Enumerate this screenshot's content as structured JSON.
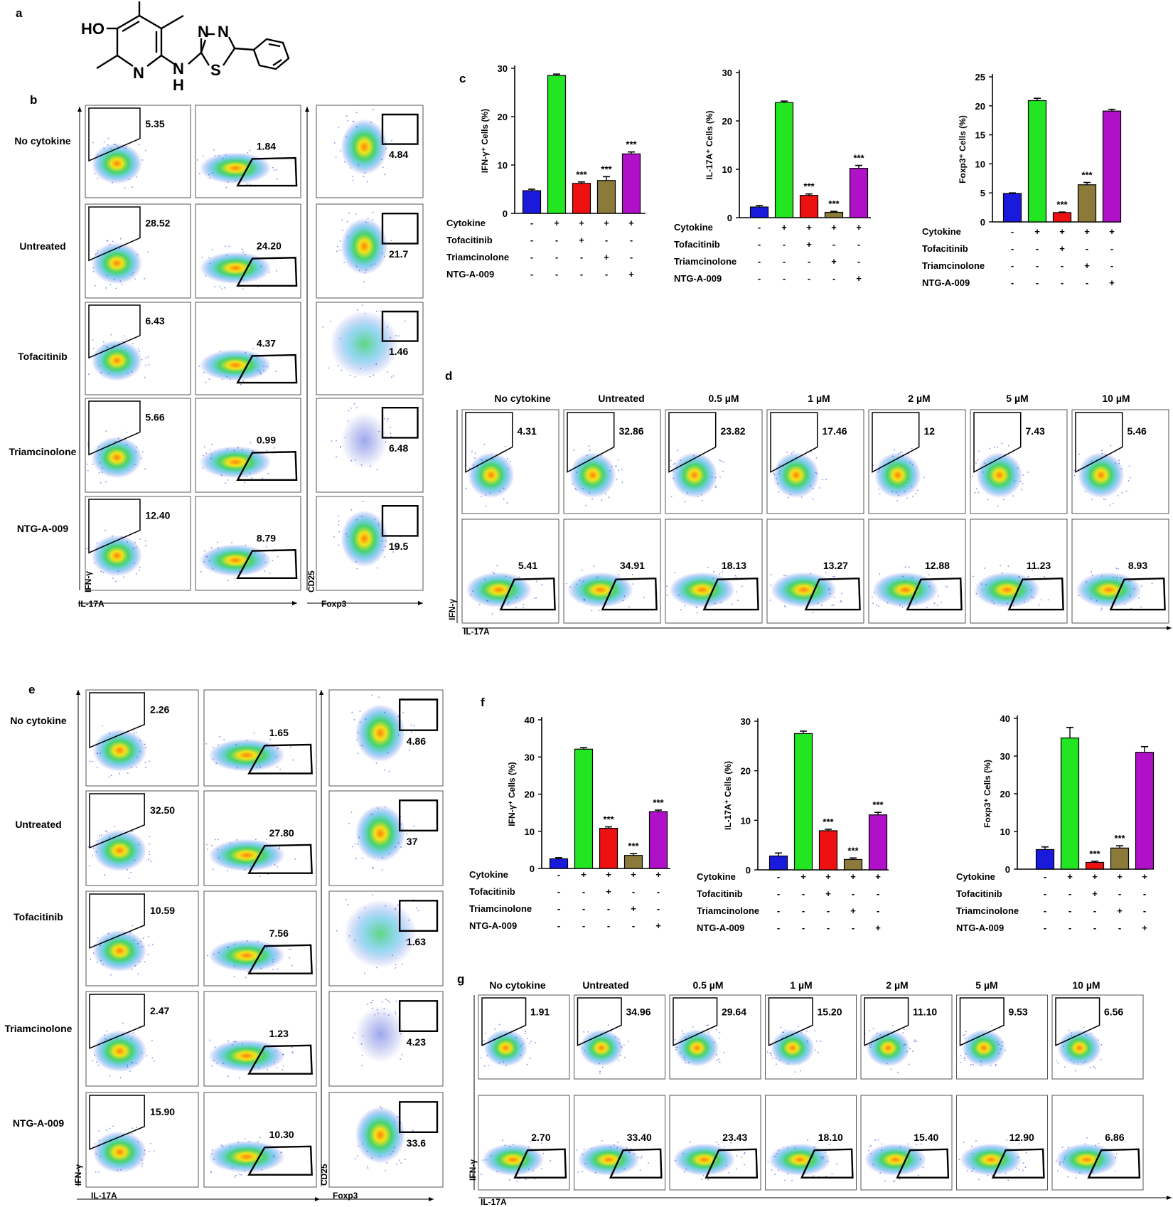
{
  "panel_letters": {
    "a": "a",
    "b": "b",
    "c": "c",
    "d": "d",
    "e": "e",
    "f": "f",
    "g": "g"
  },
  "structure": {
    "ho": "HO",
    "n1": "N",
    "n2": "N",
    "n3": "N",
    "nh_n": "N",
    "nh_h": "H",
    "s": "S"
  },
  "conditions": [
    "No cytokine",
    "Untreated",
    "Tofacitinib",
    "Triamcinolone",
    "NTG-A-009"
  ],
  "doses": [
    "No cytokine",
    "Untreated",
    "0.5 µM",
    "1 µM",
    "2 µM",
    "5 µM",
    "10 µM"
  ],
  "axis_labels": {
    "ifng": "IFN-γ",
    "il17a": "IL-17A",
    "cd25": "CD25",
    "foxp3": "Foxp3"
  },
  "panel_b": {
    "ifng_values": [
      "5.35",
      "28.52",
      "6.43",
      "5.66",
      "12.40"
    ],
    "il17_values": [
      "1.84",
      "24.20",
      "4.37",
      "0.99",
      "8.79"
    ],
    "foxp3_values": [
      "4.84",
      "21.7",
      "1.46",
      "6.48",
      "19.5"
    ]
  },
  "panel_d": {
    "ifng_values": [
      "4.31",
      "32.86",
      "23.82",
      "17.46",
      "12",
      "7.43",
      "5.46"
    ],
    "il17_values": [
      "5.41",
      "34.91",
      "18.13",
      "13.27",
      "12.88",
      "11.23",
      "8.93"
    ]
  },
  "panel_e": {
    "ifng_values": [
      "2.26",
      "32.50",
      "10.59",
      "2.47",
      "15.90"
    ],
    "il17_values": [
      "1.65",
      "27.80",
      "7.56",
      "1.23",
      "10.30"
    ],
    "foxp3_values": [
      "4.86",
      "37",
      "1.63",
      "4.23",
      "33.6"
    ]
  },
  "panel_g": {
    "ifng_values": [
      "1.91",
      "34.96",
      "29.64",
      "15.20",
      "11.10",
      "9.53",
      "6.56"
    ],
    "il17_values": [
      "2.70",
      "33.40",
      "23.43",
      "18.10",
      "15.40",
      "12.90",
      "6.86"
    ]
  },
  "treatment_table": {
    "rows": [
      "Cytokine",
      "Tofacitinib",
      "Triamcinolone",
      "NTG-A-009"
    ],
    "signs": [
      [
        "-",
        "+",
        "+",
        "+",
        "+"
      ],
      [
        "-",
        "-",
        "+",
        "-",
        "-"
      ],
      [
        "-",
        "-",
        "-",
        "+",
        "-"
      ],
      [
        "-",
        "-",
        "-",
        "-",
        "+"
      ]
    ]
  },
  "significance_mark": "***",
  "colors": [
    "#1a1adc",
    "#22e622",
    "#ee1111",
    "#8b7a3a",
    "#b010c8"
  ],
  "chart_data": [
    {
      "type": "bar",
      "panel": "c",
      "ylabel": "IFN-γ⁺ Cells (%)",
      "ylim": [
        0,
        30
      ],
      "ticks": [
        "0",
        "10",
        "20",
        "30"
      ],
      "values": [
        4.7,
        28.5,
        6.2,
        6.8,
        12.3
      ],
      "errors": [
        0.3,
        0.3,
        0.3,
        0.8,
        0.4
      ],
      "significant": [
        false,
        false,
        true,
        true,
        true
      ]
    },
    {
      "type": "bar",
      "panel": "c",
      "ylabel": "IL-17A⁺ Cells (%)",
      "ylim": [
        0,
        30
      ],
      "ticks": [
        "0",
        "10",
        "20",
        "30"
      ],
      "values": [
        2.2,
        23.8,
        4.6,
        1.1,
        10.2
      ],
      "errors": [
        0.3,
        0.3,
        0.3,
        0.2,
        0.6
      ],
      "significant": [
        false,
        false,
        true,
        true,
        true
      ]
    },
    {
      "type": "bar",
      "panel": "c",
      "ylabel": "Foxp3⁺ Cells (%)",
      "ylim": [
        0,
        25
      ],
      "ticks": [
        "0",
        "5",
        "10",
        "15",
        "20",
        "25"
      ],
      "values": [
        4.9,
        20.9,
        1.6,
        6.4,
        19.1
      ],
      "errors": [
        0.1,
        0.4,
        0.1,
        0.4,
        0.3
      ],
      "significant": [
        false,
        false,
        true,
        true,
        false
      ]
    },
    {
      "type": "bar",
      "panel": "f",
      "ylabel": "IFN-γ⁺ Cells (%)",
      "ylim": [
        0,
        40
      ],
      "ticks": [
        "0",
        "10",
        "20",
        "30",
        "40"
      ],
      "values": [
        2.6,
        32.1,
        10.8,
        3.5,
        15.3
      ],
      "errors": [
        0.3,
        0.4,
        0.4,
        0.5,
        0.4
      ],
      "significant": [
        false,
        false,
        true,
        true,
        true
      ]
    },
    {
      "type": "bar",
      "panel": "f",
      "ylabel": "IL-17A⁺ Cells (%)",
      "ylim": [
        0,
        30
      ],
      "ticks": [
        "0",
        "10",
        "20",
        "30"
      ],
      "values": [
        2.8,
        27.5,
        7.9,
        2.1,
        11.1
      ],
      "errors": [
        0.6,
        0.5,
        0.3,
        0.3,
        0.5
      ],
      "significant": [
        false,
        false,
        true,
        true,
        true
      ]
    },
    {
      "type": "bar",
      "panel": "f",
      "ylabel": "Foxp3⁺ Cells (%)",
      "ylim": [
        0,
        40
      ],
      "ticks": [
        "0",
        "10",
        "20",
        "30",
        "40"
      ],
      "values": [
        5.2,
        34.8,
        1.8,
        5.6,
        31.0
      ],
      "errors": [
        0.7,
        2.8,
        0.3,
        0.6,
        1.5
      ],
      "significant": [
        false,
        false,
        true,
        true,
        false
      ]
    }
  ]
}
